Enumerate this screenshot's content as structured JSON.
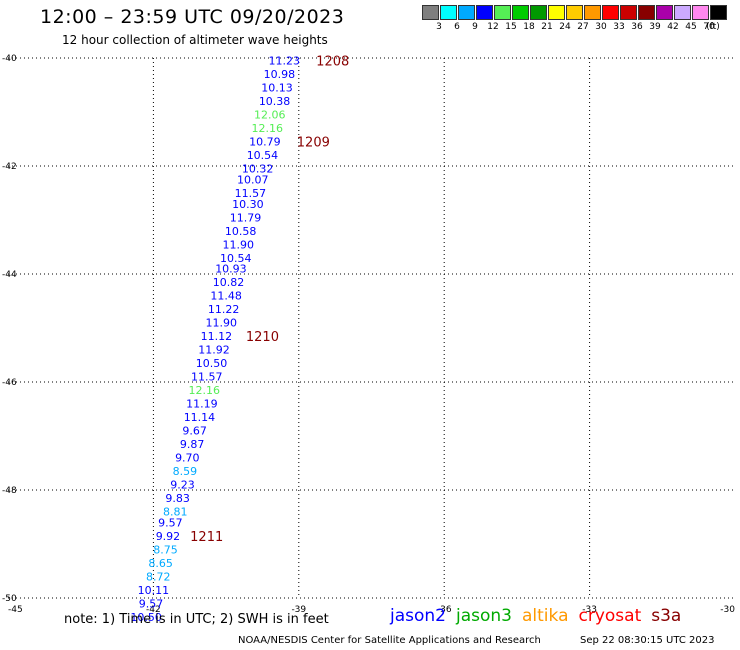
{
  "header": {
    "title": "12:00 – 23:59 UTC 09/20/2023",
    "subtitle": "12 hour collection of altimeter wave heights"
  },
  "color_scale": {
    "unit": "(ft)",
    "bins": [
      {
        "label": "3",
        "color": "#7f7f7f"
      },
      {
        "label": "6",
        "color": "#00ffff"
      },
      {
        "label": "9",
        "color": "#00aaff"
      },
      {
        "label": "12",
        "color": "#0000ff"
      },
      {
        "label": "15",
        "color": "#55ee55"
      },
      {
        "label": "18",
        "color": "#00cc00"
      },
      {
        "label": "21",
        "color": "#009900"
      },
      {
        "label": "24",
        "color": "#ffff00"
      },
      {
        "label": "27",
        "color": "#ffcc00"
      },
      {
        "label": "30",
        "color": "#ff9900"
      },
      {
        "label": "33",
        "color": "#ff0000"
      },
      {
        "label": "36",
        "color": "#cc0000"
      },
      {
        "label": "39",
        "color": "#880000"
      },
      {
        "label": "42",
        "color": "#aa00aa"
      },
      {
        "label": "45",
        "color": "#ccaaff"
      },
      {
        "label": "70",
        "color": "#ff88ee"
      },
      {
        "label": "",
        "color": "#000000"
      }
    ]
  },
  "chart_data": {
    "type": "scatter",
    "xlim": [
      -45,
      -30
    ],
    "ylim": [
      -50,
      -40
    ],
    "x_ticks": [
      "-45",
      "-42",
      "-39",
      "-36",
      "-33",
      "-30"
    ],
    "y_ticks": [
      "-40",
      "-42",
      "-44",
      "-46",
      "-48",
      "-50"
    ],
    "points": [
      {
        "lon": -39.3,
        "lat": -40.05,
        "value": "11.23",
        "color": "#0000ff"
      },
      {
        "lon": -39.4,
        "lat": -40.3,
        "value": "10.98",
        "color": "#0000ff"
      },
      {
        "lon": -39.45,
        "lat": -40.55,
        "value": "10.13",
        "color": "#0000ff"
      },
      {
        "lon": -39.5,
        "lat": -40.8,
        "value": "10.38",
        "color": "#0000ff"
      },
      {
        "lon": -39.6,
        "lat": -41.05,
        "value": "12.06",
        "color": "#55ee55"
      },
      {
        "lon": -39.65,
        "lat": -41.3,
        "value": "12.16",
        "color": "#55ee55"
      },
      {
        "lon": -39.7,
        "lat": -41.55,
        "value": "10.79",
        "color": "#0000ff"
      },
      {
        "lon": -39.75,
        "lat": -41.8,
        "value": "10.54",
        "color": "#0000ff"
      },
      {
        "lon": -39.85,
        "lat": -42.05,
        "value": "10.32",
        "color": "#0000ff"
      },
      {
        "lon": -39.95,
        "lat": -42.25,
        "value": "10.07",
        "color": "#0000ff"
      },
      {
        "lon": -40.0,
        "lat": -42.5,
        "value": "11.57",
        "color": "#0000ff"
      },
      {
        "lon": -40.05,
        "lat": -42.7,
        "value": "10.30",
        "color": "#0000ff"
      },
      {
        "lon": -40.1,
        "lat": -42.95,
        "value": "11.79",
        "color": "#0000ff"
      },
      {
        "lon": -40.2,
        "lat": -43.2,
        "value": "10.58",
        "color": "#0000ff"
      },
      {
        "lon": -40.25,
        "lat": -43.45,
        "value": "11.90",
        "color": "#0000ff"
      },
      {
        "lon": -40.3,
        "lat": -43.7,
        "value": "10.54",
        "color": "#0000ff"
      },
      {
        "lon": -40.4,
        "lat": -43.9,
        "value": "10.93",
        "color": "#0000ff"
      },
      {
        "lon": -40.45,
        "lat": -44.15,
        "value": "10.82",
        "color": "#0000ff"
      },
      {
        "lon": -40.5,
        "lat": -44.4,
        "value": "11.48",
        "color": "#0000ff"
      },
      {
        "lon": -40.55,
        "lat": -44.65,
        "value": "11.22",
        "color": "#0000ff"
      },
      {
        "lon": -40.6,
        "lat": -44.9,
        "value": "11.90",
        "color": "#0000ff"
      },
      {
        "lon": -40.7,
        "lat": -45.15,
        "value": "11.12",
        "color": "#0000ff"
      },
      {
        "lon": -40.75,
        "lat": -45.4,
        "value": "11.92",
        "color": "#0000ff"
      },
      {
        "lon": -40.8,
        "lat": -45.65,
        "value": "10.50",
        "color": "#0000ff"
      },
      {
        "lon": -40.9,
        "lat": -45.9,
        "value": "11.57",
        "color": "#0000ff"
      },
      {
        "lon": -40.95,
        "lat": -46.15,
        "value": "12.16",
        "color": "#55ee55"
      },
      {
        "lon": -41.0,
        "lat": -46.4,
        "value": "11.19",
        "color": "#0000ff"
      },
      {
        "lon": -41.05,
        "lat": -46.65,
        "value": "11.14",
        "color": "#0000ff"
      },
      {
        "lon": -41.15,
        "lat": -46.9,
        "value": "9.67",
        "color": "#0000ff"
      },
      {
        "lon": -41.2,
        "lat": -47.15,
        "value": "9.87",
        "color": "#0000ff"
      },
      {
        "lon": -41.3,
        "lat": -47.4,
        "value": "9.70",
        "color": "#0000ff"
      },
      {
        "lon": -41.35,
        "lat": -47.65,
        "value": "8.59",
        "color": "#00aaff"
      },
      {
        "lon": -41.4,
        "lat": -47.9,
        "value": "9.23",
        "color": "#0000ff"
      },
      {
        "lon": -41.5,
        "lat": -48.15,
        "value": "9.83",
        "color": "#0000ff"
      },
      {
        "lon": -41.55,
        "lat": -48.4,
        "value": "8.81",
        "color": "#00aaff"
      },
      {
        "lon": -41.65,
        "lat": -48.6,
        "value": "9.57",
        "color": "#0000ff"
      },
      {
        "lon": -41.7,
        "lat": -48.85,
        "value": "9.92",
        "color": "#0000ff"
      },
      {
        "lon": -41.75,
        "lat": -49.1,
        "value": "8.75",
        "color": "#00aaff"
      },
      {
        "lon": -41.85,
        "lat": -49.35,
        "value": "8.65",
        "color": "#00aaff"
      },
      {
        "lon": -41.9,
        "lat": -49.6,
        "value": "8.72",
        "color": "#00aaff"
      },
      {
        "lon": -42.0,
        "lat": -49.85,
        "value": "10.11",
        "color": "#0000ff"
      },
      {
        "lon": -42.05,
        "lat": -50.1,
        "value": "9.57",
        "color": "#0000ff"
      },
      {
        "lon": -42.15,
        "lat": -50.35,
        "value": "10.50",
        "color": "#0000ff"
      }
    ],
    "time_labels": [
      {
        "lon": -38.3,
        "lat": -40.05,
        "text": "1208"
      },
      {
        "lon": -38.7,
        "lat": -41.55,
        "text": "1209"
      },
      {
        "lon": -39.75,
        "lat": -45.15,
        "text": "1210"
      },
      {
        "lon": -40.9,
        "lat": -48.85,
        "text": "1211"
      }
    ],
    "time_label_color": "#880000"
  },
  "note": "note: 1) Time is in UTC; 2) SWH is in feet",
  "legend": [
    {
      "label": "jason2",
      "color": "#0000ff"
    },
    {
      "label": "jason3",
      "color": "#00aa00"
    },
    {
      "label": "altika",
      "color": "#ff9900"
    },
    {
      "label": "cryosat",
      "color": "#ff0000"
    },
    {
      "label": "s3a",
      "color": "#880000"
    }
  ],
  "footer": {
    "source": "NOAA/NESDIS Center for Satellite Applications and Research",
    "timestamp": "Sep 22 08:30:15 UTC 2023"
  }
}
